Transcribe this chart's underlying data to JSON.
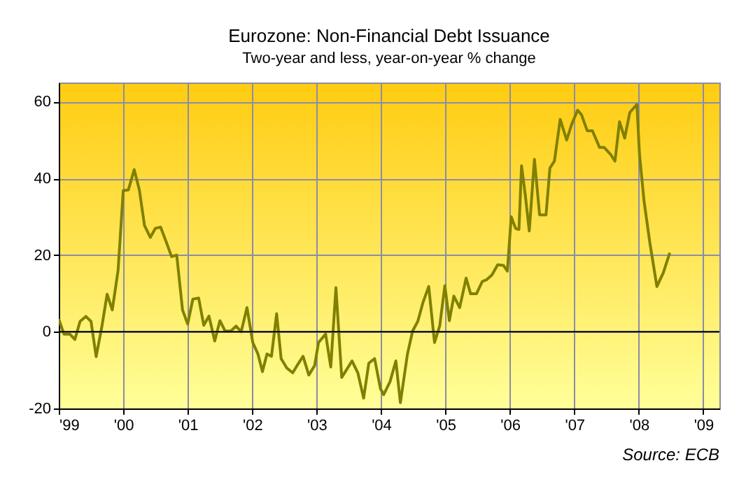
{
  "chart_data": {
    "type": "line",
    "title": "Eurozone: Non-Financial Debt Issuance",
    "subtitle": "Two-year and less, year-on-year % change",
    "annotations": [
      "Source: ECB"
    ],
    "x": [
      1999.0,
      1999.08,
      1999.17,
      1999.25,
      1999.33,
      1999.42,
      1999.5,
      1999.58,
      1999.67,
      1999.75,
      1999.83,
      1999.92,
      2000.0,
      2000.08,
      2000.17,
      2000.25,
      2000.33,
      2000.42,
      2000.5,
      2000.58,
      2000.67,
      2000.75,
      2000.83,
      2000.92,
      2001.0,
      2001.08,
      2001.17,
      2001.25,
      2001.33,
      2001.42,
      2001.5,
      2001.58,
      2001.67,
      2001.75,
      2001.83,
      2001.92,
      2002.01,
      2002.09,
      2002.16,
      2002.23,
      2002.3,
      2002.38,
      2002.45,
      2002.54,
      2002.63,
      2002.72,
      2002.79,
      2002.88,
      2002.97,
      2003.03,
      2003.14,
      2003.22,
      2003.3,
      2003.39,
      2003.48,
      2003.55,
      2003.64,
      2003.73,
      2003.81,
      2003.9,
      2003.99,
      2004.04,
      2004.14,
      2004.23,
      2004.3,
      2004.41,
      2004.49,
      2004.57,
      2004.65,
      2004.74,
      2004.83,
      2004.91,
      2004.99,
      2005.06,
      2005.13,
      2005.22,
      2005.32,
      2005.39,
      2005.48,
      2005.57,
      2005.64,
      2005.72,
      2005.81,
      2005.9,
      2005.96,
      2006.02,
      2006.09,
      2006.14,
      2006.18,
      2006.24,
      2006.3,
      2006.38,
      2006.46,
      2006.56,
      2006.62,
      2006.69,
      2006.78,
      2006.88,
      2006.96,
      2007.05,
      2007.11,
      2007.2,
      2007.28,
      2007.39,
      2007.46,
      2007.56,
      2007.63,
      2007.7,
      2007.78,
      2007.86,
      2007.97,
      2008.01,
      2008.08,
      2008.17,
      2008.28,
      2008.38,
      2008.48
    ],
    "series": [
      {
        "color": "#808000",
        "values": [
          3.3,
          -0.6,
          -0.6,
          -2,
          2.7,
          4,
          2.7,
          -6.5,
          1.5,
          9.8,
          5.7,
          16,
          36.8,
          37,
          42.3,
          37,
          27.7,
          24.6,
          27,
          27.3,
          23.3,
          19.6,
          20,
          5.7,
          2,
          8.5,
          8.8,
          1.7,
          4.1,
          -2.4,
          2.9,
          0.2,
          0.2,
          1.5,
          0,
          6.3,
          -2.8,
          -5.8,
          -10.4,
          -5.8,
          -6.4,
          4.7,
          -7,
          -9.5,
          -10.7,
          -8.2,
          -6.4,
          -11.3,
          -8.8,
          -2.8,
          -0.6,
          -9.2,
          11.5,
          -11.9,
          -9.5,
          -7.6,
          -10.7,
          -17.3,
          -8.2,
          -7,
          -14.8,
          -16.4,
          -13,
          -7.6,
          -18.5,
          -5.8,
          0.2,
          2.7,
          7.6,
          11.8,
          -2.8,
          1.5,
          12,
          2.9,
          9.3,
          6.3,
          14,
          9.9,
          9.9,
          13.1,
          13.6,
          14.8,
          17.5,
          17.3,
          15.8,
          30,
          26.9,
          26.7,
          43.3,
          35.4,
          26.3,
          45,
          30.5,
          30.5,
          42.7,
          44.5,
          55.4,
          50,
          54.2,
          57.8,
          56.6,
          52.4,
          52.4,
          48.1,
          48.1,
          46.3,
          44.5,
          54.8,
          50.5,
          57.2,
          59.3,
          46.3,
          34.2,
          23.3,
          11.8,
          15.4,
          20.6
        ]
      }
    ],
    "xlim": [
      1999,
      2009.25
    ],
    "xticks": [
      {
        "value": 1999,
        "label": "'99"
      },
      {
        "value": 2000,
        "label": "'00"
      },
      {
        "value": 2001,
        "label": "'01"
      },
      {
        "value": 2002,
        "label": "'02"
      },
      {
        "value": 2003,
        "label": "'03"
      },
      {
        "value": 2004,
        "label": "'04"
      },
      {
        "value": 2005,
        "label": "'05"
      },
      {
        "value": 2006,
        "label": "'06"
      },
      {
        "value": 2007,
        "label": "'07"
      },
      {
        "value": 2008,
        "label": "'08"
      },
      {
        "value": 2009,
        "label": "'09"
      }
    ],
    "ylim": [
      -20,
      65
    ],
    "yticks": [
      -20,
      0,
      20,
      40,
      60
    ],
    "ref_lines": [
      {
        "axis": "y",
        "value": 0,
        "color": "#000000"
      }
    ],
    "grid": true,
    "marker": "none",
    "line_style": "solid"
  }
}
